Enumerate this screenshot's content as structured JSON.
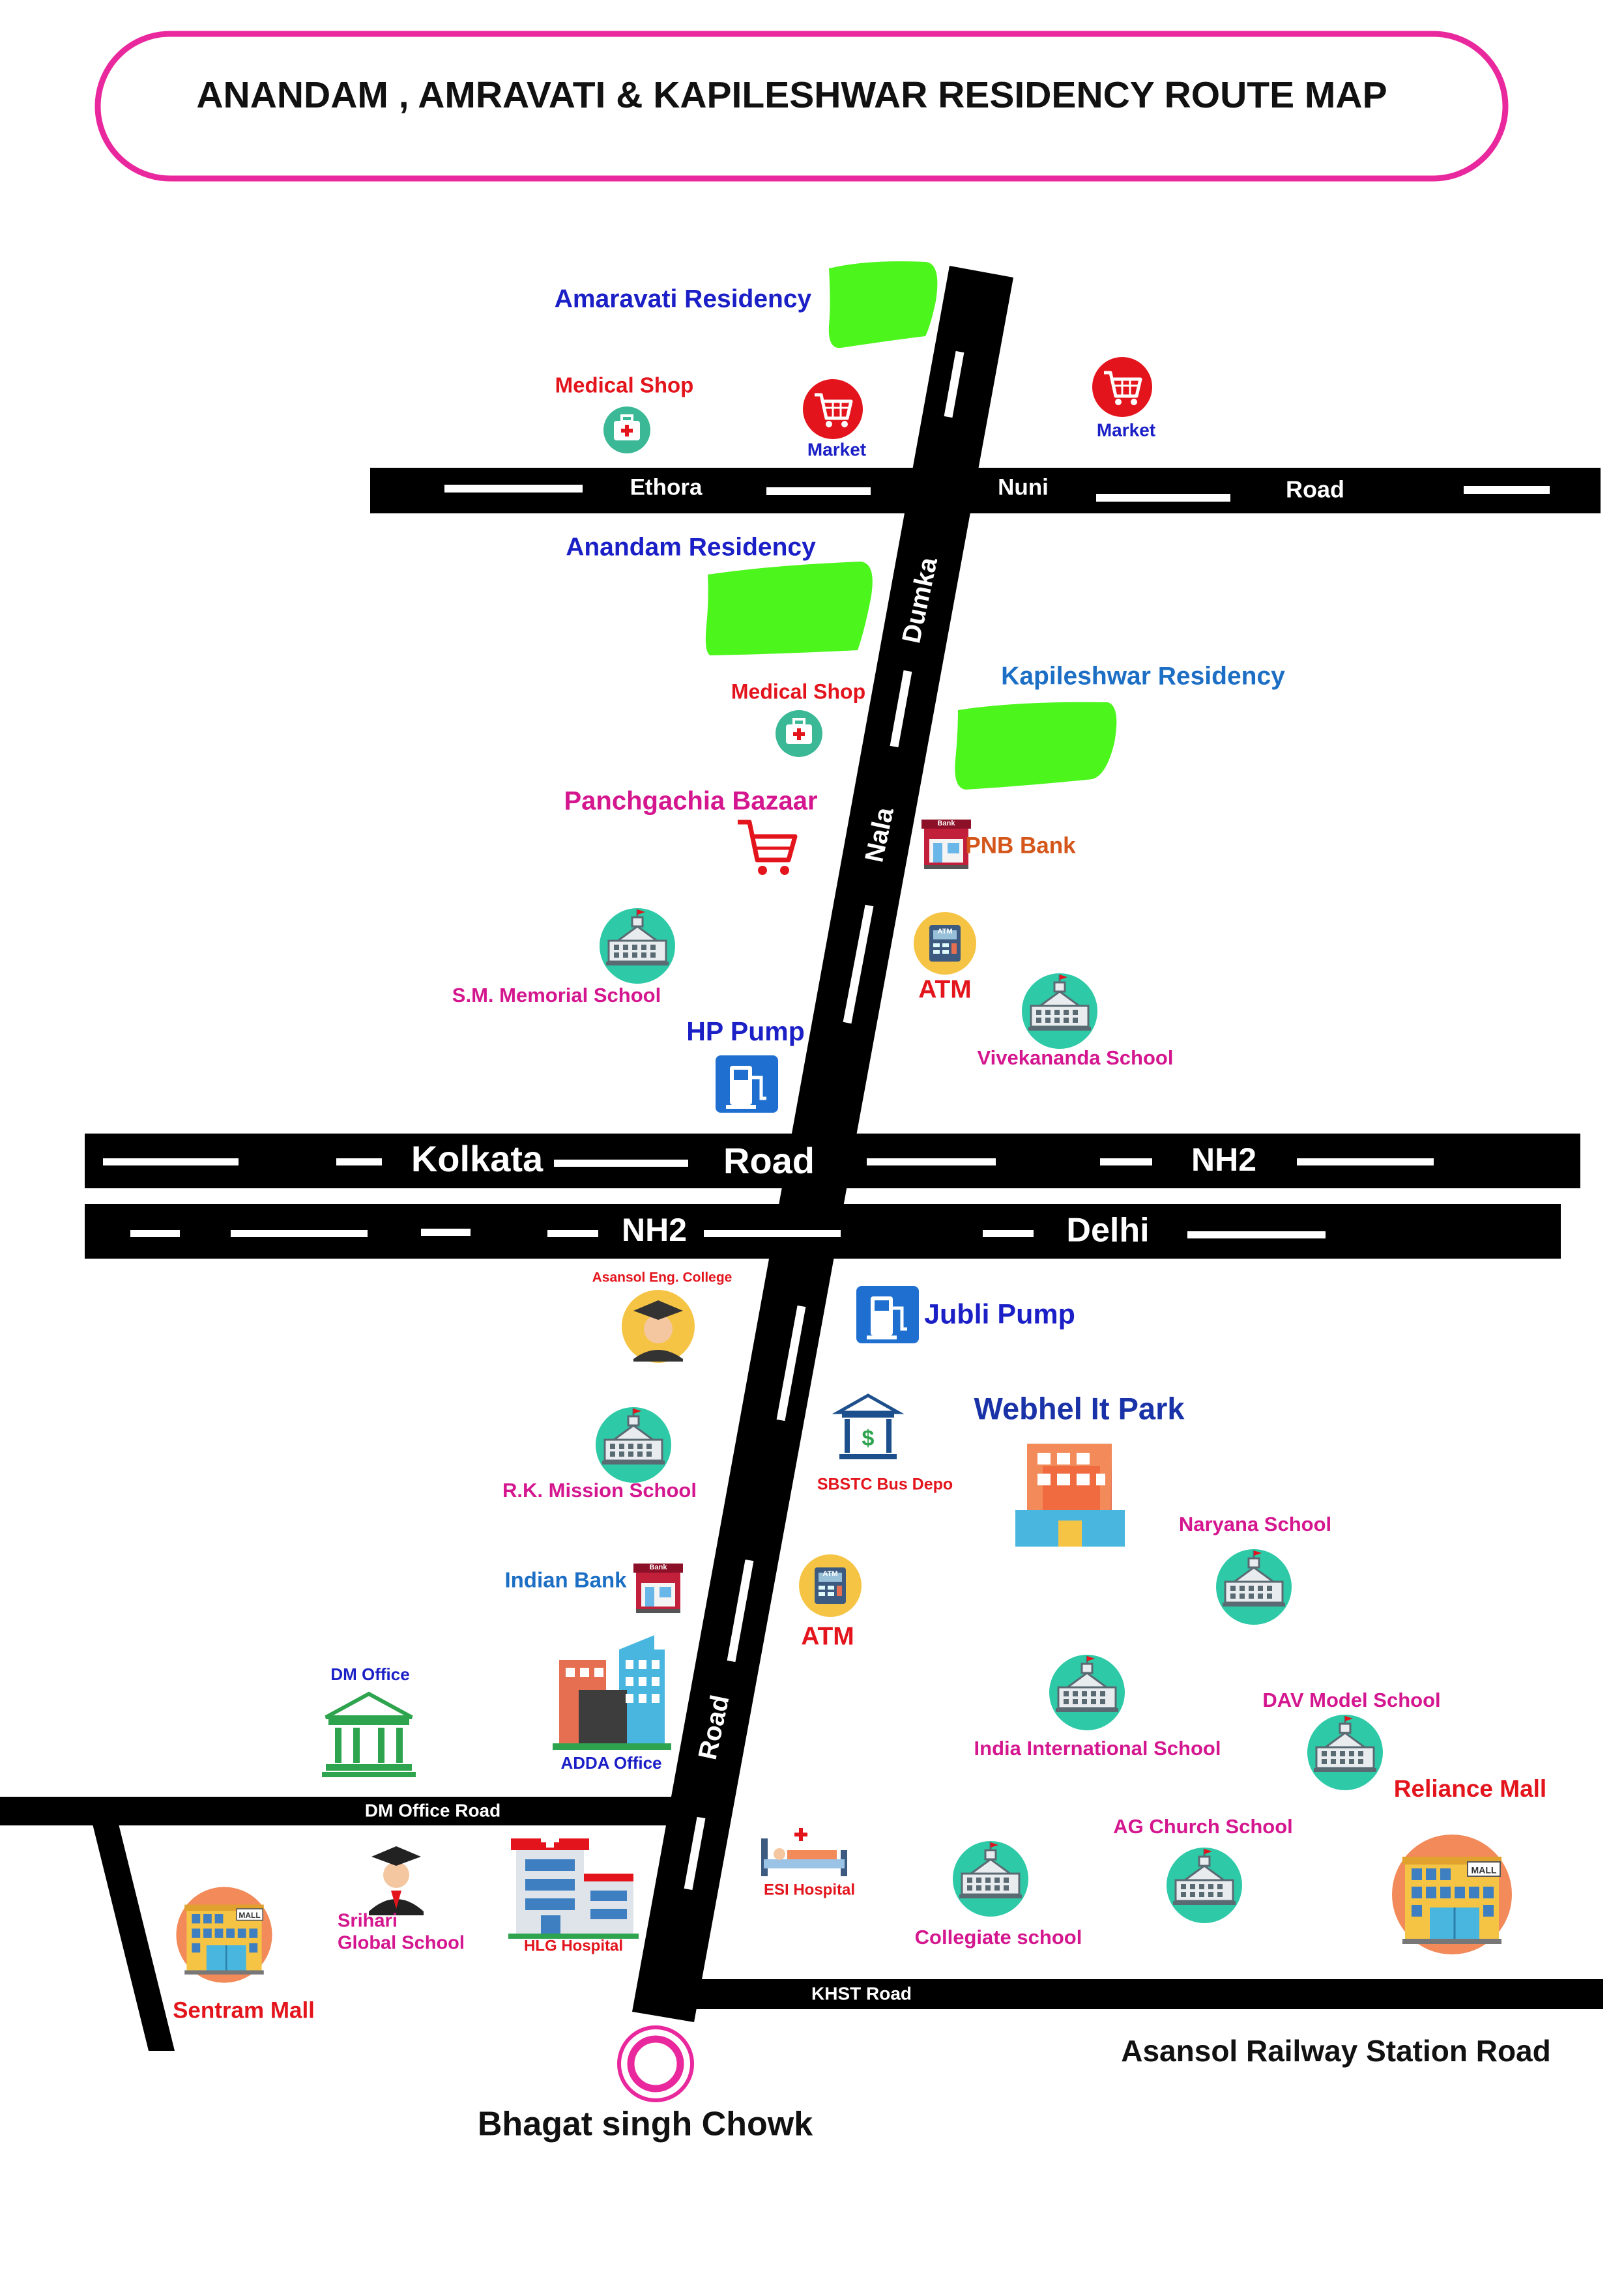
{
  "title": "ANANDAM , AMRAVATI & KAPILESHWAR RESIDENCY ROUTE MAP",
  "colors": {
    "frame": "#e9289d",
    "road": "#000000",
    "road_dash": "#ffffff",
    "residency": "#4cf51c",
    "blue_label": "#1b1fc6",
    "red_label": "#e3141c",
    "pink_label": "#d4168f",
    "orange_label": "#d4561b",
    "teal_icon": "#2ec9a7",
    "yellow_icon": "#f6c445"
  },
  "roads": {
    "ethora": "Ethora",
    "nuni": "Nuni",
    "road_top": "Road",
    "dumka": "Dumka",
    "nala": "Nala",
    "road_vertical": "Road",
    "kolkata": "Kolkata",
    "road_mid": "Road",
    "nh2_upper": "NH2",
    "nh2_lower": "NH2",
    "delhi": "Delhi",
    "dm_office_road": "DM Office Road",
    "khst_road": "KHST Road",
    "asansol_station_road": "Asansol Railway Station Road"
  },
  "places": {
    "amaravati_residency": "Amaravati Residency",
    "anandam_residency": "Anandam Residency",
    "kapileshwar_residency": "Kapileshwar Residency",
    "medical_shop_1": "Medical Shop",
    "medical_shop_2": "Medical Shop",
    "market_1": "Market",
    "market_2": "Market",
    "panchgachia_bazaar": "Panchgachia Bazaar",
    "pnb_bank": "PNB Bank",
    "atm_1": "ATM",
    "atm_2": "ATM",
    "sm_memorial_school": "S.M. Memorial School",
    "vivekananda_school": "Vivekananda School",
    "hp_pump": "HP Pump",
    "asansol_eng_college": "Asansol Eng. College",
    "jubli_pump": "Jubli Pump",
    "webhel_it_park": "Webhel It Park",
    "sbstc_bus_depo": "SBSTC Bus Depo",
    "rk_mission_school": "R.K. Mission School",
    "indian_bank": "Indian Bank",
    "naryana_school": "Naryana School",
    "dm_office": "DM Office",
    "adda_office": "ADDA Office",
    "india_international_school": "India International School",
    "dav_model_school": "DAV Model School",
    "reliance_mall": "Reliance Mall",
    "ag_church_school": "AG Church School",
    "srihari_global_school_line1": "Srihari",
    "srihari_global_school_line2": "Global School",
    "hlg_hospital": "HLG Hospital",
    "esi_hospital": "ESI Hospital",
    "collegiate_school": "Collegiate school",
    "sentram_mall": "Sentram Mall",
    "bhagat_singh_chowk": "Bhagat singh Chowk"
  },
  "icon_text": {
    "bank_sign": "Bank",
    "atm_sign": "ATM",
    "mall_sign": "MALL",
    "dollar_sign": "$"
  },
  "icons": [
    "residency-area-icon",
    "medical-kit-icon",
    "shopping-cart-icon",
    "bank-building-icon",
    "atm-icon",
    "school-icon",
    "fuel-pump-icon",
    "graduate-icon",
    "government-building-icon",
    "office-tower-icon",
    "office-block-icon",
    "hospital-icon",
    "hospital-bed-icon",
    "mall-icon",
    "roundabout-icon"
  ]
}
